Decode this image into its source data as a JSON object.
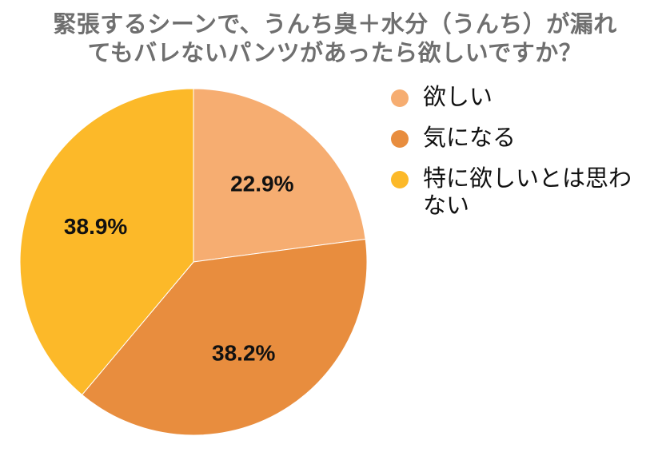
{
  "title": {
    "line1": "緊張するシーンで、うんち臭＋水分（うんち）が漏れ",
    "line2": "てもバレないパンツがあったら欲しいですか？"
  },
  "chart_data": {
    "type": "pie",
    "categories": [
      "欲しい",
      "気になる",
      "特に欲しいとは思わない"
    ],
    "values": [
      22.9,
      38.2,
      38.9
    ],
    "labels": [
      "22.9%",
      "38.2%",
      "38.9%"
    ],
    "colors": [
      "#f6ad71",
      "#e88d3e",
      "#fcb929"
    ],
    "legend_position": "right",
    "start_angle": "12 o'clock, clockwise"
  },
  "legend": {
    "items": [
      {
        "label": "欲しい",
        "color": "#f6ad71"
      },
      {
        "label": "気になる",
        "color": "#e88d3e"
      },
      {
        "label": "特に欲しいとは思わない",
        "color": "#fcb929"
      }
    ]
  }
}
